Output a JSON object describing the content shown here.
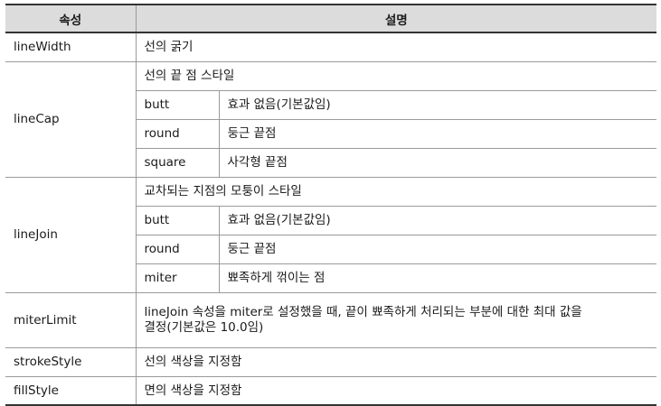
{
  "header": {
    "col_property": "속성",
    "col_description": "설명"
  },
  "rows": {
    "lineWidth": {
      "name": "lineWidth",
      "desc": "선의 굵기"
    },
    "lineCap": {
      "name": "lineCap",
      "desc": "선의 끝 점 스타일",
      "options": [
        {
          "value": "butt",
          "desc": "효과 없음(기본값임)"
        },
        {
          "value": "round",
          "desc": "둥근 끝점"
        },
        {
          "value": "square",
          "desc": "사각형 끝점"
        }
      ]
    },
    "lineJoin": {
      "name": "lineJoin",
      "desc": "교차되는 지점의 모퉁이 스타일",
      "options": [
        {
          "value": "butt",
          "desc": "효과 없음(기본값임)"
        },
        {
          "value": "round",
          "desc": "둥근 끝점"
        },
        {
          "value": "miter",
          "desc": "뾰족하게 꺾이는 점"
        }
      ]
    },
    "miterLimit": {
      "name": "miterLimit",
      "desc_line1": "lineJoin 속성을 miter로 설정했을 때, 끝이 뾰족하게 처리되는 부분에 대한 최대 값을",
      "desc_line2": "결정(기본값은 10.0임)"
    },
    "strokeStyle": {
      "name": "strokeStyle",
      "desc": "선의 색상을 지정함"
    },
    "fillStyle": {
      "name": "fillStyle",
      "desc": "면의 색상을 지정함"
    }
  }
}
